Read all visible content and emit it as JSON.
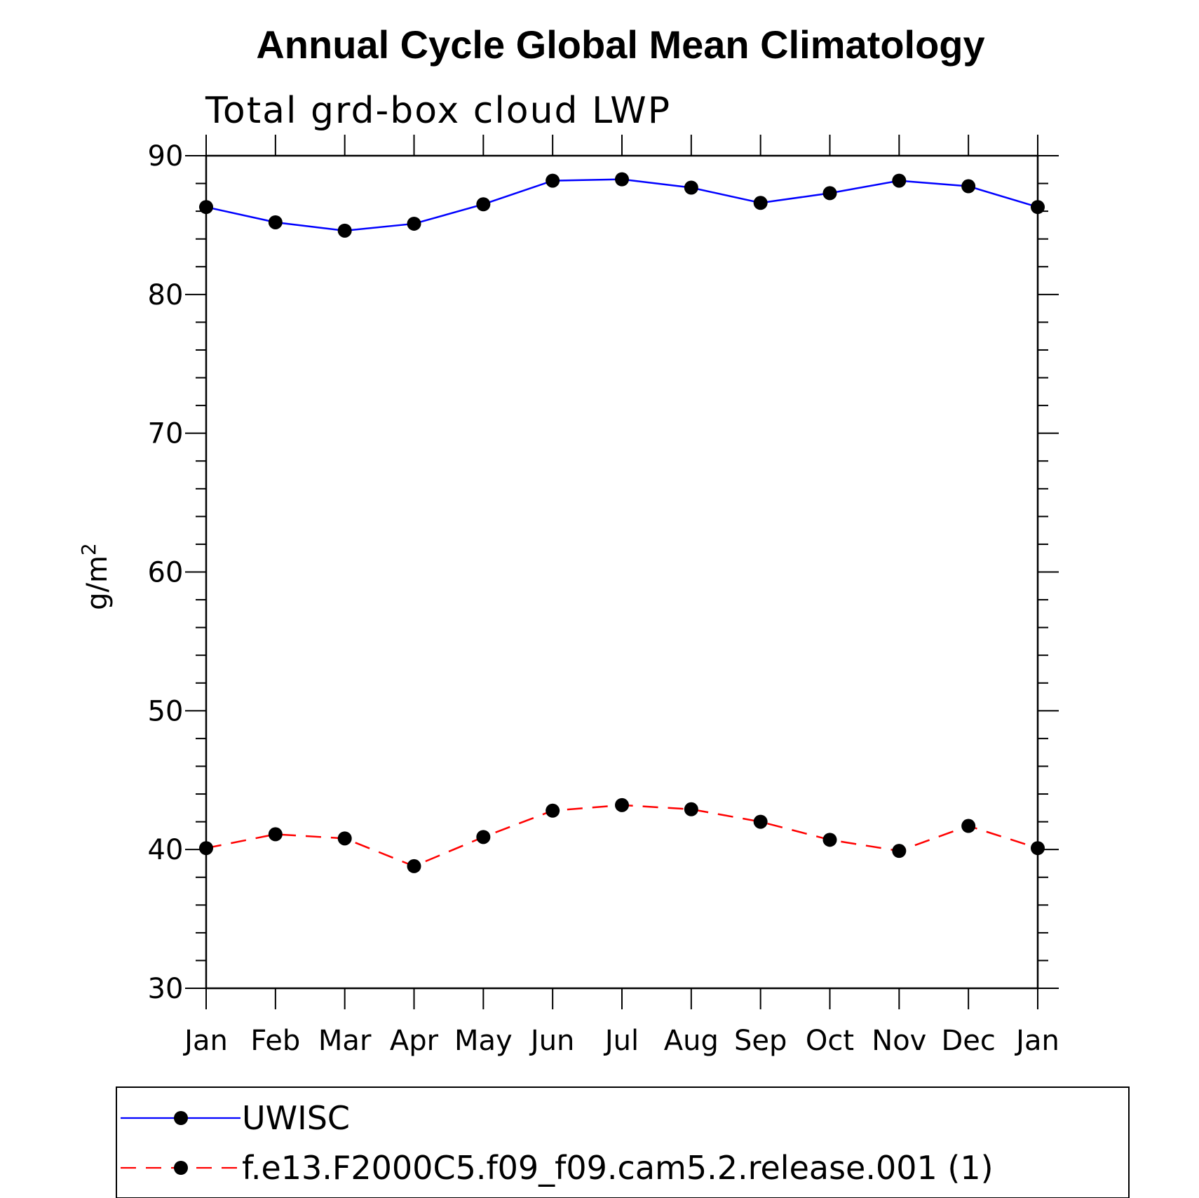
{
  "chart_data": {
    "type": "line",
    "title": "Annual Cycle Global Mean Climatology",
    "subtitle": "Total grd-box cloud LWP",
    "ylabel": "g/m",
    "ylabel_superscript": "2",
    "xlabel": "",
    "ylim": [
      30,
      90
    ],
    "yticks": [
      "30",
      "40",
      "50",
      "60",
      "70",
      "80",
      "90"
    ],
    "categories": [
      "Jan",
      "Feb",
      "Mar",
      "Apr",
      "May",
      "Jun",
      "Jul",
      "Aug",
      "Sep",
      "Oct",
      "Nov",
      "Dec",
      "Jan"
    ],
    "series": [
      {
        "name": "UWISC",
        "color": "#0000ff",
        "dash": "solid",
        "values": [
          86.3,
          85.2,
          84.6,
          85.1,
          86.5,
          88.2,
          88.3,
          87.7,
          86.6,
          87.3,
          88.2,
          87.8,
          86.3
        ]
      },
      {
        "name": "f.e13.F2000C5.f09_f09.cam5.2.release.001 (1)",
        "color": "#ff0000",
        "dash": "dashed",
        "values": [
          40.1,
          41.1,
          40.8,
          38.8,
          40.9,
          42.8,
          43.2,
          42.9,
          42.0,
          40.7,
          39.9,
          41.7,
          40.1
        ]
      }
    ],
    "marker_color": "#000000",
    "legend_position": "bottom"
  }
}
